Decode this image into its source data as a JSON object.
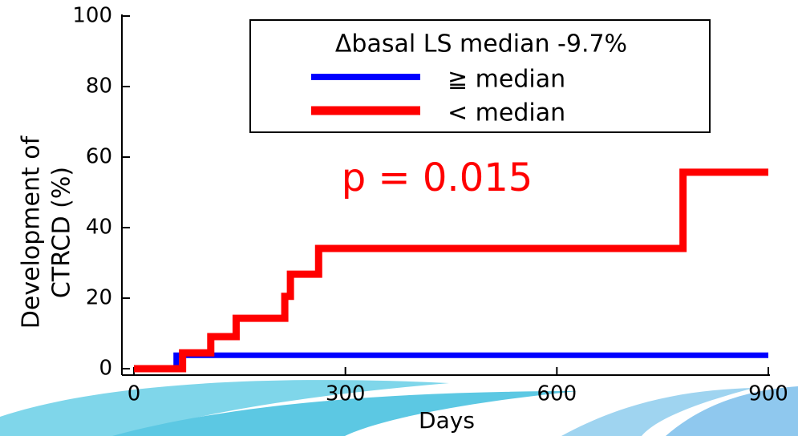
{
  "chart_data": {
    "type": "step",
    "xlabel": "Days",
    "ylabel": [
      "Development of",
      "CTRCD (%)"
    ],
    "legend_title": "Δbasal LS median  -9.7%",
    "annotation": "p = 0.015",
    "annotation_color": "#ff0000",
    "xlim": [
      0,
      900
    ],
    "xticks": [
      0,
      300,
      600,
      900
    ],
    "ylim": [
      0,
      100
    ],
    "yticks": [
      0,
      20,
      40,
      60,
      80,
      100
    ],
    "series": [
      {
        "name": "≧ median",
        "color": "#0000ff",
        "x": [
          0,
          60,
          900
        ],
        "values": [
          0,
          3.8,
          3.8
        ]
      },
      {
        "name": "< median",
        "color": "#ff0000",
        "x": [
          0,
          69,
          109,
          145,
          214,
          222,
          262,
          779,
          900
        ],
        "values": [
          0,
          4.5,
          9.1,
          14.3,
          20.5,
          26.8,
          34.1,
          55.7,
          55.7
        ]
      }
    ]
  }
}
